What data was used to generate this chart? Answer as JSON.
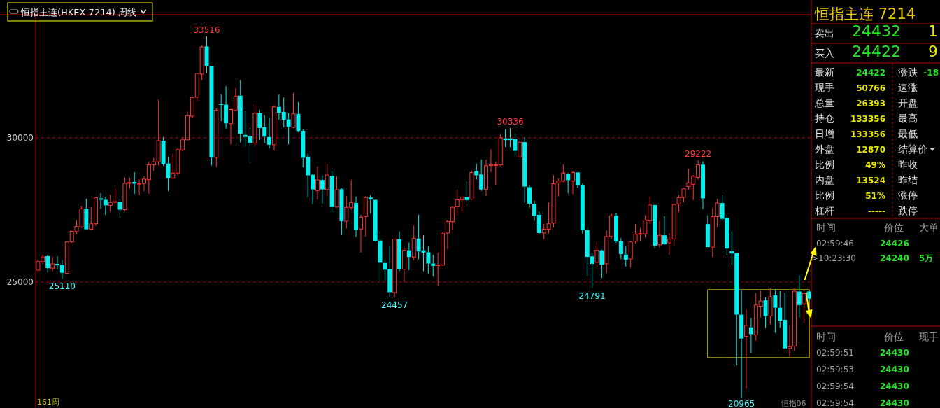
{
  "chart_data": [
    {
      "type": "candlestick",
      "title": "恒指主连(HKEX 7214)  周线",
      "categories": [
        null,
        null,
        null,
        null,
        null,
        null,
        null,
        null,
        null,
        null,
        null,
        null,
        null,
        null,
        null,
        null,
        null,
        null,
        null,
        null,
        null,
        null,
        null,
        null,
        null,
        null,
        null,
        null,
        null,
        null,
        null,
        null,
        null,
        null,
        null,
        null,
        null,
        null,
        null,
        null,
        null,
        null,
        null,
        null,
        null,
        null,
        null,
        null,
        null,
        null,
        null,
        null,
        null,
        null,
        null,
        null,
        null,
        null,
        null,
        null,
        null,
        null,
        null,
        null,
        null,
        null,
        null,
        null,
        null,
        null,
        null,
        null,
        null,
        null,
        null,
        null,
        null,
        null,
        null,
        null,
        null,
        null,
        null,
        null,
        null,
        null,
        null,
        null,
        null,
        null,
        null,
        null,
        null,
        null,
        null,
        null,
        null,
        null,
        null,
        null,
        null,
        null,
        null,
        null,
        null,
        null,
        null,
        null,
        null,
        null,
        null,
        null,
        null,
        null,
        null,
        null,
        null,
        null,
        null,
        null,
        null,
        null,
        null,
        null,
        null,
        null,
        null,
        null,
        null,
        null,
        null,
        null,
        null,
        null,
        null,
        null,
        null,
        null,
        null,
        null,
        null,
        null,
        null,
        null,
        null,
        null,
        null,
        null,
        null,
        null,
        null,
        null,
        null,
        null,
        null,
        null,
        null,
        null,
        null,
        null,
        null
      ],
      "ohlc": [
        [
          25410,
          25770,
          25330,
          25710
        ],
        [
          25710,
          25950,
          25630,
          25870
        ],
        [
          25900,
          25950,
          25330,
          25480
        ],
        [
          25480,
          25870,
          25380,
          25630
        ],
        [
          25630,
          25890,
          25430,
          25580
        ],
        [
          25590,
          25760,
          25110,
          25320
        ],
        [
          25300,
          26420,
          25270,
          26390
        ],
        [
          26390,
          26780,
          26360,
          26760
        ],
        [
          26750,
          27150,
          26650,
          26930
        ],
        [
          26910,
          27630,
          26880,
          27540
        ],
        [
          27540,
          27890,
          26830,
          26830
        ],
        [
          26830,
          27590,
          26800,
          27020
        ],
        [
          27020,
          27930,
          26940,
          27920
        ],
        [
          27900,
          28080,
          27540,
          27850
        ],
        [
          27850,
          27950,
          27330,
          27660
        ],
        [
          27660,
          28030,
          27430,
          27760
        ],
        [
          27770,
          28230,
          27740,
          27790
        ],
        [
          27790,
          27890,
          27240,
          27510
        ],
        [
          27510,
          28620,
          27460,
          28420
        ],
        [
          28420,
          28620,
          28230,
          28450
        ],
        [
          28470,
          28810,
          28050,
          28410
        ],
        [
          28410,
          28550,
          28020,
          28420
        ],
        [
          28420,
          28670,
          28150,
          28570
        ],
        [
          28550,
          29170,
          28060,
          29060
        ],
        [
          29060,
          29300,
          28850,
          29170
        ],
        [
          29170,
          31320,
          29040,
          29900
        ],
        [
          29900,
          30030,
          29040,
          29090
        ],
        [
          29110,
          29350,
          28150,
          28600
        ],
        [
          28600,
          29450,
          28580,
          28780
        ],
        [
          28780,
          29630,
          28700,
          29590
        ],
        [
          29580,
          30030,
          29530,
          29930
        ],
        [
          29930,
          30910,
          29920,
          30760
        ],
        [
          30750,
          31400,
          30700,
          31400
        ],
        [
          31410,
          32240,
          31270,
          32230
        ],
        [
          32210,
          33200,
          32000,
          33150
        ],
        [
          33170,
          33516,
          32240,
          32490
        ],
        [
          32490,
          32490,
          29040,
          29320
        ],
        [
          29320,
          31020,
          28990,
          30960
        ],
        [
          31170,
          31510,
          30580,
          31140
        ],
        [
          31150,
          31790,
          30320,
          30500
        ],
        [
          30490,
          31020,
          29770,
          30980
        ],
        [
          30950,
          31710,
          30930,
          31440
        ],
        [
          31460,
          32000,
          29840,
          30140
        ],
        [
          30100,
          30930,
          29720,
          30030
        ],
        [
          30050,
          30330,
          29140,
          29820
        ],
        [
          29820,
          31150,
          29720,
          30850
        ],
        [
          30850,
          30970,
          29930,
          30340
        ],
        [
          30370,
          30780,
          29820,
          30040
        ],
        [
          30030,
          30710,
          29630,
          29760
        ],
        [
          29760,
          31110,
          29560,
          31070
        ],
        [
          31070,
          31500,
          30630,
          30870
        ],
        [
          30900,
          31400,
          30360,
          30630
        ],
        [
          30640,
          30860,
          29770,
          30380
        ],
        [
          30360,
          31540,
          30340,
          30830
        ],
        [
          30830,
          31240,
          30210,
          30240
        ],
        [
          30240,
          30300,
          28980,
          29310
        ],
        [
          29350,
          29450,
          27940,
          28700
        ],
        [
          28720,
          28760,
          27700,
          28210
        ],
        [
          28170,
          29010,
          27860,
          28540
        ],
        [
          28540,
          28690,
          27720,
          28210
        ],
        [
          28210,
          29100,
          27980,
          28710
        ],
        [
          28680,
          28840,
          27430,
          27600
        ],
        [
          27600,
          28660,
          27580,
          28200
        ],
        [
          28220,
          28250,
          26630,
          27110
        ],
        [
          27110,
          27980,
          26860,
          27590
        ],
        [
          27580,
          28540,
          27510,
          27760
        ],
        [
          27740,
          27960,
          26570,
          26810
        ],
        [
          26840,
          27330,
          26020,
          27250
        ],
        [
          27270,
          27980,
          26570,
          27930
        ],
        [
          27930,
          28020,
          27370,
          27860
        ],
        [
          27850,
          27860,
          26410,
          26430
        ],
        [
          26440,
          26760,
          25060,
          25670
        ],
        [
          25660,
          25790,
          25060,
          25430
        ],
        [
          25460,
          26230,
          24500,
          24650
        ],
        [
          24630,
          26490,
          24457,
          26490
        ],
        [
          26490,
          26760,
          25380,
          25450
        ],
        [
          25450,
          26200,
          24990,
          26100
        ],
        [
          26100,
          26370,
          25410,
          25870
        ],
        [
          25870,
          26960,
          25750,
          26510
        ],
        [
          26510,
          27330,
          25790,
          26060
        ],
        [
          26100,
          26620,
          25380,
          26020
        ],
        [
          26030,
          26230,
          25290,
          25640
        ],
        [
          25640,
          25940,
          25190,
          25560
        ],
        [
          25580,
          26020,
          24880,
          25590
        ],
        [
          25590,
          26730,
          25560,
          26680
        ],
        [
          26700,
          27150,
          26130,
          27100
        ],
        [
          27090,
          27630,
          26810,
          27590
        ],
        [
          27610,
          28200,
          27300,
          27850
        ],
        [
          27850,
          27970,
          27430,
          27950
        ],
        [
          27950,
          28490,
          27760,
          27840
        ],
        [
          27870,
          28860,
          27850,
          28800
        ],
        [
          28850,
          29110,
          28550,
          28700
        ],
        [
          28730,
          29250,
          28160,
          28210
        ],
        [
          28220,
          29250,
          27980,
          29030
        ],
        [
          29040,
          29610,
          28810,
          29070
        ],
        [
          29040,
          29170,
          28370,
          29070
        ],
        [
          29060,
          30130,
          29010,
          30000
        ],
        [
          29980,
          30290,
          29680,
          29920
        ],
        [
          29980,
          30336,
          29680,
          29920
        ],
        [
          29950,
          30130,
          29380,
          29550
        ],
        [
          29340,
          29850,
          29340,
          29850
        ],
        [
          29850,
          30030,
          27760,
          28310
        ],
        [
          28290,
          28360,
          27580,
          27720
        ],
        [
          27710,
          27820,
          27120,
          27290
        ],
        [
          27330,
          27450,
          26670,
          26700
        ],
        [
          26700,
          27010,
          26480,
          26830
        ],
        [
          26830,
          27760,
          26680,
          27020
        ],
        [
          27040,
          28700,
          26890,
          28410
        ],
        [
          28440,
          28600,
          27970,
          28500
        ],
        [
          28500,
          29070,
          28460,
          28780
        ],
        [
          28760,
          28780,
          28070,
          28530
        ],
        [
          28500,
          28830,
          28050,
          28800
        ],
        [
          28800,
          28810,
          28260,
          28360
        ],
        [
          28370,
          28410,
          26680,
          26800
        ],
        [
          26800,
          26880,
          25200,
          25870
        ],
        [
          25890,
          26000,
          24791,
          25630
        ],
        [
          25680,
          26370,
          25530,
          26100
        ],
        [
          26100,
          26130,
          25140,
          25600
        ],
        [
          25630,
          26780,
          25300,
          26580
        ],
        [
          26580,
          27370,
          26490,
          27300
        ],
        [
          27300,
          27400,
          26360,
          26410
        ],
        [
          26420,
          26520,
          25790,
          25970
        ],
        [
          25950,
          26230,
          25540,
          25770
        ],
        [
          25800,
          26440,
          25500,
          26390
        ],
        [
          26410,
          27010,
          26340,
          26660
        ],
        [
          26670,
          26860,
          26420,
          26680
        ],
        [
          26670,
          27320,
          26550,
          27150
        ],
        [
          27120,
          27970,
          27010,
          27670
        ],
        [
          27670,
          27680,
          26160,
          26260
        ],
        [
          26290,
          27120,
          26210,
          26620
        ],
        [
          26620,
          27280,
          26290,
          26310
        ],
        [
          26360,
          26700,
          25950,
          26490
        ],
        [
          26490,
          27720,
          26230,
          27690
        ],
        [
          27710,
          28020,
          27430,
          27930
        ],
        [
          27930,
          28240,
          27760,
          28230
        ],
        [
          28310,
          28930,
          28200,
          28440
        ],
        [
          28390,
          28710,
          27840,
          28670
        ],
        [
          28630,
          29222,
          28550,
          29060
        ],
        [
          29070,
          29190,
          27530,
          27900
        ],
        [
          27010,
          27320,
          26210,
          26210
        ],
        [
          26210,
          27560,
          25870,
          27270
        ],
        [
          27270,
          27880,
          26890,
          27740
        ],
        [
          27740,
          28000,
          27120,
          27190
        ],
        [
          27220,
          27320,
          25920,
          26160
        ],
        [
          26070,
          26760,
          25590,
          25990
        ],
        [
          26000,
          26000,
          22110,
          23870
        ],
        [
          23870,
          24730,
          20965,
          23040
        ],
        [
          23120,
          24060,
          21300,
          23500
        ],
        [
          23430,
          23750,
          22550,
          23190
        ],
        [
          23170,
          24620,
          22970,
          24200
        ],
        [
          24160,
          24700,
          23770,
          24340
        ],
        [
          24370,
          24470,
          23410,
          23820
        ],
        [
          23820,
          24780,
          23540,
          24490
        ],
        [
          24540,
          24760,
          23240,
          24110
        ],
        [
          24110,
          24680,
          23410,
          23660
        ],
        [
          23690,
          24630,
          22700,
          22700
        ],
        [
          22700,
          23510,
          22390,
          22760
        ],
        [
          22780,
          24780,
          22620,
          24680
        ],
        [
          24670,
          25250,
          23770,
          24200
        ],
        [
          24240,
          24730,
          23560,
          24600
        ],
        [
          24670,
          24680,
          24300,
          24420
        ]
      ],
      "ylim": [
        20630,
        34270
      ],
      "yticks": [
        25000,
        30000
      ],
      "grid": "y",
      "annotations": [
        "33516",
        "30336",
        "29222",
        "25110",
        "24457",
        "24791",
        "20965",
        "161周",
        "恒指06"
      ]
    },
    {
      "type": "other",
      "title": "恒指主连  7214",
      "annotations": [
        "卖出",
        "24432",
        "1",
        "买入",
        "24422",
        "9",
        "最新",
        "24422",
        "现手",
        "50766",
        "总量",
        "26393",
        "持仓",
        "133356",
        "日增",
        "133356",
        "外盘",
        "12870",
        "比例",
        "49%",
        "内盘",
        "13524",
        "比例",
        "51%",
        "杠杆",
        "-----",
        "涨跌",
        "-18",
        "速涨",
        "开盘",
        "最高",
        "最低",
        "结算价",
        "昨收",
        "昨结",
        "涨停",
        "跌停",
        "时间",
        "价位",
        "大单",
        "02:59:46",
        "24426",
        ">10:23:30",
        "24240",
        "5万",
        "时间",
        "价位",
        "现手",
        "02:59:51",
        "24430",
        "02:59:53",
        "24430",
        "02:59:54",
        "24430",
        "02:59:54",
        "24430"
      ]
    }
  ]
}
